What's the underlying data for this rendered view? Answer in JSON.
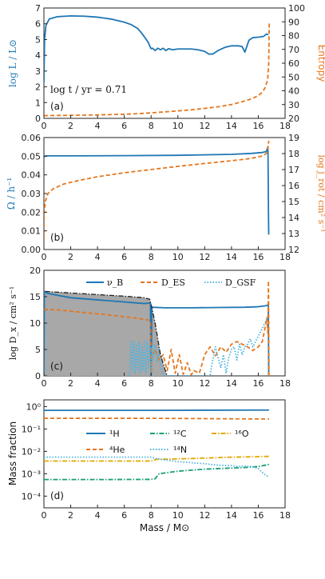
{
  "colors": {
    "blue": "#1f77b4",
    "orange": "#e6761c",
    "green": "#1b9e77",
    "gold": "#e0a800",
    "cyan": "#4fb3e0",
    "gray": "#a8a8a8",
    "black": "#222222"
  },
  "shared": {
    "xlabel": "Mass / M⊙",
    "xlim": [
      0,
      18
    ],
    "xticks": [
      "0",
      "2",
      "4",
      "6",
      "8",
      "10",
      "12",
      "14",
      "16",
      "18"
    ]
  },
  "panel_letters": [
    "(a)",
    "(b)",
    "(c)",
    "(d)"
  ],
  "chart_data": [
    {
      "panel": "a",
      "type": "line",
      "ylabel_left": "log L / L⊙",
      "ylabel_right": "Entropy",
      "ylim_left": [
        0,
        7
      ],
      "ylim_right": [
        20,
        100
      ],
      "yticks_left": [
        "0",
        "1",
        "2",
        "3",
        "4",
        "5",
        "6",
        "7"
      ],
      "yticks_right": [
        "20",
        "30",
        "40",
        "50",
        "60",
        "70",
        "80",
        "90",
        "100"
      ],
      "annotation": "log t / yr = 0.71",
      "series": [
        {
          "axis": "left",
          "color": "blue",
          "style": "solid",
          "x": [
            0,
            0.05,
            0.15,
            0.4,
            1,
            2,
            3,
            4,
            5,
            6,
            6.5,
            7,
            7.3,
            7.6,
            7.8,
            7.92,
            8.0,
            8.1,
            8.3,
            8.5,
            8.7,
            8.9,
            9.1,
            9.3,
            9.6,
            10,
            10.5,
            11,
            11.5,
            12,
            12.3,
            12.6,
            13,
            13.5,
            14,
            14.5,
            14.8,
            15,
            15.3,
            15.6,
            16,
            16.4,
            16.6,
            16.75
          ],
          "y": [
            2.3,
            5.0,
            5.9,
            6.3,
            6.45,
            6.5,
            6.48,
            6.42,
            6.3,
            6.1,
            5.95,
            5.7,
            5.4,
            5.05,
            4.8,
            4.55,
            4.42,
            4.45,
            4.3,
            4.45,
            4.35,
            4.45,
            4.3,
            4.42,
            4.35,
            4.4,
            4.4,
            4.4,
            4.35,
            4.25,
            4.08,
            4.08,
            4.3,
            4.5,
            4.6,
            4.6,
            4.55,
            4.2,
            4.95,
            5.12,
            5.15,
            5.2,
            5.35,
            5.3
          ]
        },
        {
          "axis": "right",
          "color": "orange",
          "style": "dashed",
          "x": [
            0,
            2,
            4,
            6,
            7,
            8,
            9,
            10,
            11,
            12,
            13,
            14,
            15,
            15.5,
            16,
            16.3,
            16.5,
            16.7,
            16.78,
            16.82
          ],
          "y": [
            22,
            22.2,
            22.5,
            23,
            23.4,
            24,
            24.7,
            25.4,
            26.2,
            27.2,
            28.4,
            30,
            32.6,
            34.2,
            36.5,
            39,
            42,
            48,
            60,
            90
          ]
        }
      ]
    },
    {
      "panel": "b",
      "type": "line",
      "ylabel_left": "Ω / h⁻¹",
      "ylabel_right": "log j_rot / cm² s⁻¹",
      "ylim_left": [
        0,
        0.06
      ],
      "ylim_right": [
        12,
        19
      ],
      "yticks_left": [
        "0.00",
        "0.01",
        "0.02",
        "0.03",
        "0.04",
        "0.05",
        "0.06"
      ],
      "yticks_right": [
        "12",
        "13",
        "14",
        "15",
        "16",
        "17",
        "18",
        "19"
      ],
      "series": [
        {
          "axis": "left",
          "color": "blue",
          "style": "solid",
          "x": [
            0,
            0.05,
            0.2,
            2,
            6,
            10,
            14,
            15.5,
            16.3,
            16.6,
            16.72,
            16.74,
            16.76,
            16.78
          ],
          "y": [
            0.0495,
            0.05,
            0.0502,
            0.0502,
            0.0503,
            0.0505,
            0.051,
            0.0515,
            0.052,
            0.0525,
            0.055,
            0.04,
            0.02,
            0.008
          ]
        },
        {
          "axis": "right",
          "color": "orange",
          "style": "dashed",
          "x": [
            0,
            0.02,
            0.1,
            0.3,
            0.7,
            1.5,
            2.5,
            4,
            6,
            8,
            10,
            12,
            14,
            15.5,
            16.3,
            16.6,
            16.72,
            16.78
          ],
          "y": [
            12.6,
            14.3,
            15.0,
            15.5,
            15.8,
            16.1,
            16.3,
            16.55,
            16.8,
            17.0,
            17.2,
            17.38,
            17.55,
            17.7,
            17.85,
            18.0,
            18.3,
            18.8
          ]
        }
      ]
    },
    {
      "panel": "c",
      "type": "line",
      "ylabel_left": "log D_x / cm² s⁻¹",
      "ylim_left": [
        0,
        20
      ],
      "yticks_left": [
        "0",
        "5",
        "10",
        "15",
        "20"
      ],
      "legend": [
        "ν_B",
        "D_ES",
        "D_GSF"
      ],
      "legend_position": "top",
      "series": [
        {
          "name": "ν_B",
          "color": "blue",
          "style": "solid",
          "x": [
            0,
            0.03,
            0.3,
            2,
            5,
            7.5,
            7.95,
            8.0,
            8.05,
            9,
            11,
            13,
            15,
            16,
            16.6,
            16.75,
            16.78,
            16.8
          ],
          "y": [
            0,
            16,
            15.6,
            14.8,
            14.2,
            13.7,
            13.8,
            0,
            13.0,
            12.9,
            12.9,
            12.95,
            13.0,
            13.1,
            13.3,
            13.5,
            0,
            0
          ]
        },
        {
          "name": "D_ES",
          "color": "orange",
          "style": "dashed",
          "x": [
            0,
            0.1,
            1,
            3,
            5,
            7,
            7.8,
            7.95,
            8.0,
            8.05,
            8.3,
            8.6,
            8.9,
            9.2,
            9.5,
            9.8,
            10.1,
            10.4,
            10.7,
            11,
            11.2,
            11.6,
            12,
            12.4,
            12.8,
            13.2,
            13.6,
            14,
            14.4,
            14.8,
            15.2,
            15.6,
            16,
            16.3,
            16.5,
            16.65,
            16.72,
            16.76,
            16.8
          ],
          "y": [
            12.6,
            12.6,
            12.5,
            12.0,
            11.5,
            10.9,
            10.6,
            10.3,
            0.5,
            3.5,
            5.0,
            3.0,
            4.0,
            1.0,
            5.0,
            0.5,
            4.0,
            0.3,
            2.5,
            0.2,
            1.0,
            0.5,
            4.0,
            5.5,
            3.8,
            5.5,
            4.5,
            6.0,
            6.5,
            6.0,
            5.5,
            4.8,
            5.5,
            6.5,
            9.0,
            11.0,
            8.0,
            18.0,
            0
          ]
        },
        {
          "name": "D_GSF",
          "color": "cyan",
          "style": "dotted",
          "x": [
            6.4,
            6.5,
            6.6,
            6.7,
            6.8,
            6.9,
            7.0,
            7.1,
            7.2,
            7.3,
            7.4,
            7.5,
            7.6,
            7.7,
            7.8,
            7.9,
            7.95,
            8.0,
            8.05,
            8.15,
            8.3,
            8.45,
            8.6,
            8.75,
            8.9,
            12.4,
            12.6,
            12.8,
            13.0,
            13.2,
            13.4,
            13.6,
            13.8,
            14.0,
            14.2,
            14.4,
            14.6,
            14.8,
            15.0,
            15.2,
            15.4,
            15.6,
            15.8,
            16.0,
            16.2,
            16.4,
            16.6,
            16.72
          ],
          "y": [
            0,
            6.5,
            1,
            6.5,
            0.5,
            6.0,
            1.0,
            6.5,
            0.5,
            5.5,
            1.0,
            6.5,
            0.5,
            6.5,
            1.5,
            6.0,
            3.0,
            0,
            5.5,
            3.0,
            6.0,
            2.5,
            5.0,
            2.0,
            0,
            0,
            3.0,
            5.5,
            3.5,
            1.5,
            4.0,
            0.5,
            3.5,
            5.0,
            5.5,
            3.0,
            6.0,
            4.0,
            5.5,
            6.0,
            7.0,
            5.5,
            6.5,
            7.5,
            8.5,
            9.5,
            10.5,
            11.5
          ]
        },
        {
          "name": "envelope",
          "color": "black",
          "style": "dashdot",
          "x": [
            0.1,
            2,
            4,
            6,
            7.5,
            7.9,
            8.05,
            8.3,
            8.5,
            8.7,
            9.0,
            9.2
          ],
          "y": [
            16.0,
            15.7,
            15.4,
            15.1,
            14.8,
            14.5,
            13.0,
            10.0,
            7.0,
            4.0,
            1.5,
            0
          ]
        }
      ],
      "shaded_region": {
        "color": "gray",
        "x": [
          0.05,
          2,
          4,
          6,
          7.5,
          7.9,
          8.05,
          8.3,
          8.5,
          8.7,
          9.0,
          9.2
        ],
        "y_top": [
          16.0,
          15.7,
          15.4,
          15.1,
          14.8,
          14.5,
          13.0,
          10.0,
          7.0,
          4.0,
          1.5,
          0
        ]
      }
    },
    {
      "panel": "d",
      "type": "line",
      "yscale": "log",
      "ylabel_left": "Mass fraction",
      "ylim_left": [
        3e-05,
        2
      ],
      "yticks_left": [
        "10⁰",
        "10⁻¹",
        "10⁻²",
        "10⁻³",
        "10⁻⁴"
      ],
      "yticks_values": [
        1,
        0.1,
        0.01,
        0.001,
        0.0001
      ],
      "legend": [
        "¹H",
        "¹²C",
        "¹⁶O",
        "⁴He",
        "¹⁴N"
      ],
      "series": [
        {
          "name": "¹H",
          "color": "blue",
          "style": "solid",
          "x": [
            0,
            4,
            8,
            12,
            16,
            16.8
          ],
          "y": [
            0.68,
            0.68,
            0.68,
            0.69,
            0.7,
            0.7
          ]
        },
        {
          "name": "⁴He",
          "color": "orange",
          "style": "dashed",
          "x": [
            0,
            4,
            8,
            12,
            16,
            16.8
          ],
          "y": [
            0.3,
            0.3,
            0.3,
            0.29,
            0.28,
            0.28
          ]
        },
        {
          "name": "¹²C",
          "color": "green",
          "style": "dashdot",
          "x": [
            0,
            4,
            8,
            8.3,
            8.6,
            10,
            12,
            14,
            15,
            16,
            16.8
          ],
          "y": [
            0.00055,
            0.00055,
            0.00056,
            0.0006,
            0.001,
            0.0013,
            0.0016,
            0.0018,
            0.0019,
            0.0021,
            0.0026
          ]
        },
        {
          "name": "¹⁶O",
          "color": "gold",
          "style": "dashdot",
          "x": [
            0,
            4,
            8,
            8.4,
            10,
            12,
            14,
            16,
            16.8
          ],
          "y": [
            0.0037,
            0.0037,
            0.0037,
            0.0044,
            0.0046,
            0.005,
            0.0055,
            0.0058,
            0.006
          ]
        },
        {
          "name": "¹⁴N",
          "color": "cyan",
          "style": "dotted",
          "x": [
            0,
            4,
            8,
            8.4,
            10,
            12,
            13,
            14,
            14.5,
            15,
            15.5,
            16,
            16.4,
            16.8
          ],
          "y": [
            0.0055,
            0.0055,
            0.0055,
            0.0047,
            0.0035,
            0.0028,
            0.0024,
            0.0023,
            0.0021,
            0.0022,
            0.0021,
            0.0017,
            0.001,
            0.0007
          ]
        }
      ]
    }
  ]
}
